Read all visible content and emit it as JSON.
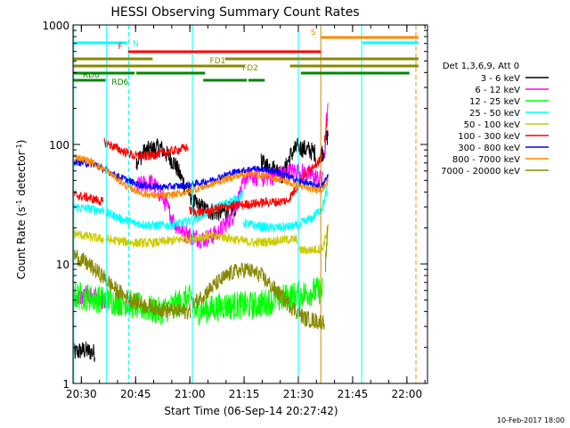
{
  "chart_data": {
    "type": "line",
    "title": "HESSI Observing Summary Count Rates",
    "xlabel": "Start Time (06-Sep-14 20:27:42)",
    "ylabel": "Count Rate (s⁻¹ detector⁻¹)",
    "ylabel_parts": [
      "Count Rate (s",
      "-1",
      " detector",
      "-1",
      ")"
    ],
    "x_unit": "minutes after 20:27:42",
    "x_ticks": [
      {
        "t": 2.3,
        "label": "20:30"
      },
      {
        "t": 17.3,
        "label": "20:45"
      },
      {
        "t": 32.3,
        "label": "21:00"
      },
      {
        "t": 47.3,
        "label": "21:15"
      },
      {
        "t": 62.3,
        "label": "21:30"
      },
      {
        "t": 77.3,
        "label": "21:45"
      },
      {
        "t": 92.3,
        "label": "22:00"
      }
    ],
    "xlim": [
      0,
      98
    ],
    "ylim": [
      1,
      1000
    ],
    "y_scale": "log",
    "y_ticks": [
      {
        "v": 1,
        "label": "1"
      },
      {
        "v": 10,
        "label": "10"
      },
      {
        "v": 100,
        "label": "100"
      },
      {
        "v": 1000,
        "label": "1000"
      }
    ],
    "legend": {
      "title": "Det 1,3,6,9, Att 0",
      "placement": "right",
      "entries": [
        {
          "label": "3 - 6 keV",
          "color": "#000000"
        },
        {
          "label": "6 - 12 keV",
          "color": "#ff00ff"
        },
        {
          "label": "12 - 25 keV",
          "color": "#00ff00"
        },
        {
          "label": "25 - 50 keV",
          "color": "#00ffff"
        },
        {
          "label": "50 - 100 keV",
          "color": "#cccc00"
        },
        {
          "label": "100 - 300 keV",
          "color": "#ff0000"
        },
        {
          "label": "300 - 800 keV",
          "color": "#0000ff"
        },
        {
          "label": "800 - 7000 keV",
          "color": "#ff8800"
        },
        {
          "label": "7000 - 20000 keV",
          "color": "#888800"
        }
      ]
    },
    "series": [
      {
        "name": "3 - 6 keV",
        "color": "#000000",
        "noise": 0.08,
        "segments": [
          {
            "t": [
              0,
              3,
              6
            ],
            "v": [
              1.8,
              1.9,
              1.8
            ]
          },
          {
            "t": [
              17.5,
              20,
              24,
              28,
              31,
              33
            ],
            "v": [
              72,
              88,
              95,
              70,
              45,
              35
            ]
          },
          {
            "t": [
              33,
              37,
              40,
              43,
              45
            ],
            "v": [
              33,
              28,
              27,
              28,
              30
            ]
          },
          {
            "t": [
              52,
              56,
              58,
              60,
              62,
              65,
              67
            ],
            "v": [
              70,
              62,
              55,
              80,
              95,
              90,
              85
            ]
          },
          {
            "t": [
              68,
              69.5,
              70,
              70.5
            ],
            "v": [
              80,
              90,
              110,
              120
            ]
          }
        ]
      },
      {
        "name": "6 - 12 keV",
        "color": "#ff00ff",
        "noise": 0.08,
        "segments": [
          {
            "t": [
              0,
              4,
              8,
              9
            ],
            "v": [
              5,
              5.5,
              5.0,
              4.5
            ]
          },
          {
            "t": [
              17.5,
              22,
              25,
              28,
              31,
              33
            ],
            "v": [
              45,
              48,
              35,
              22,
              18,
              17
            ]
          },
          {
            "t": [
              33,
              36,
              40,
              44,
              48,
              51
            ],
            "v": [
              17,
              16,
              18,
              25,
              55,
              52
            ]
          },
          {
            "t": [
              52,
              58,
              62,
              66,
              69
            ],
            "v": [
              52,
              57,
              60,
              55,
              50
            ]
          },
          {
            "t": [
              69.5,
              70,
              70.5
            ],
            "v": [
              80,
              150,
              190
            ]
          }
        ]
      },
      {
        "name": "12 - 25 keV",
        "color": "#00ff00",
        "noise": 0.12,
        "segments": [
          {
            "t": [
              0,
              5,
              9
            ],
            "v": [
              5.5,
              5.2,
              5.0
            ]
          },
          {
            "t": [
              9,
              14,
              19,
              24,
              28,
              31,
              33
            ],
            "v": [
              5,
              4.8,
              4.3,
              4.0,
              4.5,
              5.0,
              5.2
            ]
          },
          {
            "t": [
              33.5,
              38,
              42,
              44.5
            ],
            "v": [
              4.0,
              4.2,
              4.5,
              4.4
            ]
          },
          {
            "t": [
              44.5,
              50,
              56,
              62,
              68,
              69
            ],
            "v": [
              4.5,
              4.5,
              5.0,
              5.5,
              6.0,
              6.0
            ]
          }
        ]
      },
      {
        "name": "25 - 50 keV",
        "color": "#00ffff",
        "noise": 0.04,
        "segments": [
          {
            "t": [
              0,
              4,
              8.5
            ],
            "v": [
              30,
              29,
              28
            ]
          },
          {
            "t": [
              9,
              13,
              17,
              22,
              26,
              30,
              32.7
            ],
            "v": [
              27,
              24,
              22,
              21,
              21,
              22,
              23
            ]
          },
          {
            "t": [
              33,
              35,
              40,
              45,
              47
            ],
            "v": [
              23,
              25,
              30,
              35,
              38
            ]
          },
          {
            "t": [
              47,
              50,
              55,
              60,
              63
            ],
            "v": [
              22,
              21,
              20,
              20.5,
              21
            ]
          },
          {
            "t": [
              63,
              66,
              69,
              70.5
            ],
            "v": [
              22,
              24,
              30,
              45
            ]
          }
        ]
      },
      {
        "name": "50 - 100 keV",
        "color": "#cccc00",
        "noise": 0.04,
        "segments": [
          {
            "t": [
              0,
              4,
              8.5
            ],
            "v": [
              18,
              17,
              16
            ]
          },
          {
            "t": [
              9,
              13,
              17,
              22,
              26,
              30,
              32.7
            ],
            "v": [
              16,
              15.5,
              15,
              15,
              15.5,
              16,
              16.5
            ]
          },
          {
            "t": [
              33,
              37,
              41,
              45,
              50,
              55,
              59,
              62
            ],
            "v": [
              16.5,
              17,
              17,
              16,
              15,
              15.5,
              16,
              16
            ]
          },
          {
            "t": [
              62.5,
              65,
              69,
              70.5
            ],
            "v": [
              13,
              13,
              13.5,
              20
            ]
          }
        ]
      },
      {
        "name": "100 - 300 keV",
        "color": "#ff0000",
        "noise": 0.04,
        "segments": [
          {
            "t": [
              0,
              4,
              8.3
            ],
            "v": [
              38,
              36,
              33
            ]
          },
          {
            "t": [
              8.6,
              10,
              13,
              17,
              21,
              25,
              29,
              31.8
            ],
            "v": [
              105,
              100,
              90,
              80,
              80,
              85,
              90,
              95
            ]
          },
          {
            "t": [
              32.2,
              34,
              38,
              42,
              46,
              50,
              54,
              57,
              59
            ],
            "v": [
              28,
              27,
              28,
              30,
              31,
              32,
              33,
              33,
              34
            ]
          },
          {
            "t": [
              59,
              61,
              64,
              67,
              69
            ],
            "v": [
              33,
              40,
              55,
              70,
              75
            ]
          },
          {
            "t": [
              69.5,
              70.3
            ],
            "v": [
              110,
              160
            ]
          }
        ]
      },
      {
        "name": "300 - 800 keV",
        "color": "#0000ff",
        "noise": 0.03,
        "segments": [
          {
            "t": [
              0,
              6,
              12,
              18,
              24,
              30,
              34,
              38,
              44,
              50,
              56,
              62,
              66,
              69,
              70.5
            ],
            "v": [
              72,
              68,
              55,
              46,
              44,
              45,
              47,
              50,
              58,
              63,
              60,
              50,
              46,
              45,
              55
            ]
          }
        ]
      },
      {
        "name": "800 - 7000 keV",
        "color": "#ff8800",
        "noise": 0.03,
        "segments": [
          {
            "t": [
              0,
              5,
              10,
              15,
              20,
              25,
              30,
              34,
              38,
              43,
              48,
              53,
              58,
              62,
              66,
              69,
              70.5
            ],
            "v": [
              80,
              72,
              58,
              44,
              38,
              37,
              39,
              42,
              46,
              52,
              57,
              55,
              50,
              45,
              42,
              42,
              50
            ]
          }
        ]
      },
      {
        "name": "7000 - 20000 keV",
        "color": "#888800",
        "noise": 0.07,
        "segments": [
          {
            "t": [
              0,
              4,
              8,
              12,
              16,
              20,
              24,
              28,
              32.5
            ],
            "v": [
              12,
              10,
              8,
              6,
              5,
              4.5,
              4.2,
              4.0,
              4.0
            ]
          },
          {
            "t": [
              33,
              36,
              40,
              44,
              48,
              52,
              56,
              60,
              64,
              68,
              69.5
            ],
            "v": [
              4.5,
              5.5,
              7.0,
              8.5,
              9.0,
              8.0,
              6.0,
              4.5,
              3.5,
              3.3,
              3.3
            ]
          },
          {
            "t": [
              69.8,
              70.5
            ],
            "v": [
              10,
              22
            ]
          }
        ]
      }
    ],
    "state_bars": [
      {
        "label": "N",
        "color": "#00ffff",
        "level": 1,
        "label_side": "right",
        "spans": [
          [
            0,
            15
          ],
          [
            80,
            95.5
          ]
        ]
      },
      {
        "label": "S",
        "color": "#ff8800",
        "level": 0,
        "label_side": "left",
        "spans": [
          [
            68.6,
            95.5
          ]
        ]
      },
      {
        "label": "F",
        "color": "#ff0000",
        "level": 2,
        "label_side": "left",
        "spans": [
          [
            15.2,
            68.5
          ]
        ]
      },
      {
        "label": "FD1",
        "color": "#888800",
        "level": 3,
        "label_side": "inside",
        "spans": [
          [
            0,
            22
          ],
          [
            42,
            95.5
          ]
        ]
      },
      {
        "label": "FD2",
        "color": "#888800",
        "level": 4,
        "label_side": "inside",
        "spans": [
          [
            0,
            47.5
          ],
          [
            60,
            95.5
          ]
        ]
      },
      {
        "label": "RD0",
        "color": "#008800",
        "level": 5,
        "label_side": "inside",
        "spans": [
          [
            0,
            17
          ],
          [
            17.5,
            36.5
          ],
          [
            63,
            93
          ]
        ]
      },
      {
        "label": "RD6",
        "color": "#008800",
        "level": 6,
        "label_side": "inside",
        "spans": [
          [
            0,
            9
          ],
          [
            36,
            48
          ],
          [
            48.5,
            53
          ]
        ]
      }
    ],
    "vertical_markers": [
      {
        "t": 0.2,
        "color": "#00ffff",
        "style": "solid"
      },
      {
        "t": 9.3,
        "color": "#00ffff",
        "style": "solid"
      },
      {
        "t": 15.4,
        "color": "#00ffff",
        "style": "dashed"
      },
      {
        "t": 33.0,
        "color": "#00ffff",
        "style": "solid"
      },
      {
        "t": 62.3,
        "color": "#00ffff",
        "style": "solid"
      },
      {
        "t": 68.5,
        "color": "#cc8800",
        "style": "solid"
      },
      {
        "t": 79.8,
        "color": "#00ffff",
        "style": "solid"
      },
      {
        "t": 94.8,
        "color": "#ff8800",
        "style": "dashed"
      }
    ],
    "footer_stamp": "10-Feb-2017 18:00"
  }
}
